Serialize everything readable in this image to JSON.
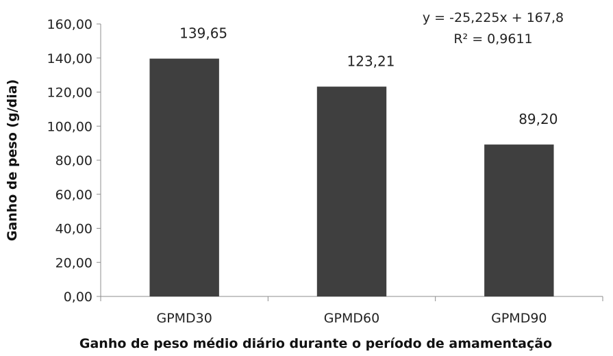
{
  "chart_data": {
    "type": "bar",
    "categories": [
      "GPMD30",
      "GPMD60",
      "GPMD90"
    ],
    "values": [
      139.65,
      123.21,
      89.2
    ],
    "data_labels": [
      "139,65",
      "123,21",
      "89,20"
    ],
    "title": "",
    "xlabel": "Ganho de peso médio diário durante o período de amamentação",
    "ylabel": "Ganho de peso (g/dia)",
    "ylim": [
      0,
      160
    ],
    "yticks": [
      0,
      20,
      40,
      60,
      80,
      100,
      120,
      140,
      160
    ],
    "ytick_labels": [
      "0,00",
      "20,00",
      "40,00",
      "60,00",
      "80,00",
      "100,00",
      "120,00",
      "140,00",
      "160,00"
    ],
    "grid": false,
    "legend": "none",
    "bar_color": "#3f3f3f",
    "annotations": {
      "equation": "y = -25,225x + 167,8",
      "r_squared": "R² = 0,9611"
    }
  }
}
